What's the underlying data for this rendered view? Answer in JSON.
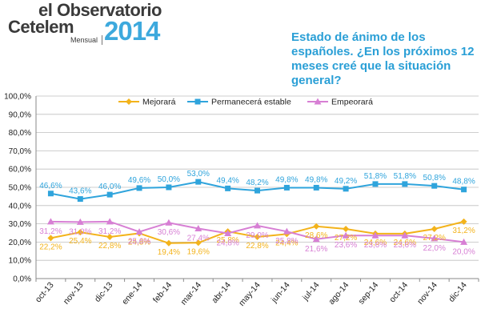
{
  "logo": {
    "line1": "el Observatorio",
    "line2": "Cetelem",
    "subtitle": "Mensual",
    "year": "2014"
  },
  "headline": "Estado de ánimo de los españoles. ¿En los próximos 12 meses creé que la situación general?",
  "chart_data": {
    "type": "line",
    "title": "Estado de ánimo de los españoles. ¿En los próximos 12 meses creé que la situación general?",
    "categories": [
      "oct-13",
      "nov-13",
      "dic-13",
      "ene-14",
      "feb-14",
      "mar-14",
      "abr-14",
      "may-14",
      "jun-14",
      "jul-14",
      "ago-14",
      "sep-14",
      "oct-14",
      "nov-14",
      "dic-14"
    ],
    "ylim": [
      0,
      100
    ],
    "yticks": [
      "0,0%",
      "10,0%",
      "20,0%",
      "30,0%",
      "40,0%",
      "50,0%",
      "60,0%",
      "70,0%",
      "80,0%",
      "90,0%",
      "100,0%"
    ],
    "legend_position": "top",
    "series": [
      {
        "name": "Mejorará",
        "color": "#f3b31b",
        "marker": "diamond",
        "values": [
          22.2,
          25.4,
          22.8,
          24.8,
          19.4,
          19.6,
          25.8,
          22.8,
          24.4,
          28.6,
          27.2,
          24.6,
          24.6,
          27.2,
          31.2
        ],
        "labels": [
          "22,2%",
          "25,4%",
          "22,8%",
          "24,8%",
          "19,4%",
          "19,6%",
          "25,8%",
          "22,8%",
          "24,4%",
          "28,6%",
          "27,2%",
          "24,6%",
          "24,6%",
          "27,2%",
          "31,2%"
        ]
      },
      {
        "name": "Permanecerá estable",
        "color": "#2fa4dc",
        "marker": "square",
        "values": [
          46.6,
          43.6,
          46.0,
          49.6,
          50.0,
          53.0,
          49.4,
          48.2,
          49.8,
          49.8,
          49.2,
          51.8,
          51.8,
          50.8,
          48.8
        ],
        "labels": [
          "46,6%",
          "43,6%",
          "46,0%",
          "49,6%",
          "50,0%",
          "53,0%",
          "49,4%",
          "48,2%",
          "49,8%",
          "49,8%",
          "49,2%",
          "51,8%",
          "51,8%",
          "50,8%",
          "48,8%"
        ]
      },
      {
        "name": "Empeorará",
        "color": "#d77fd4",
        "marker": "triangle",
        "values": [
          31.2,
          31.0,
          31.2,
          25.6,
          30.6,
          27.4,
          24.8,
          29.0,
          25.8,
          21.6,
          23.6,
          23.6,
          23.6,
          22.0,
          20.0
        ],
        "labels": [
          "31,2%",
          "31,0%",
          "31,2%",
          "25,6%",
          "30,6%",
          "27,4%",
          "24,8%",
          "29,0%",
          "25,8%",
          "21,6%",
          "23,6%",
          "23,6%",
          "23,6%",
          "22,0%",
          "20,0%"
        ]
      }
    ]
  }
}
